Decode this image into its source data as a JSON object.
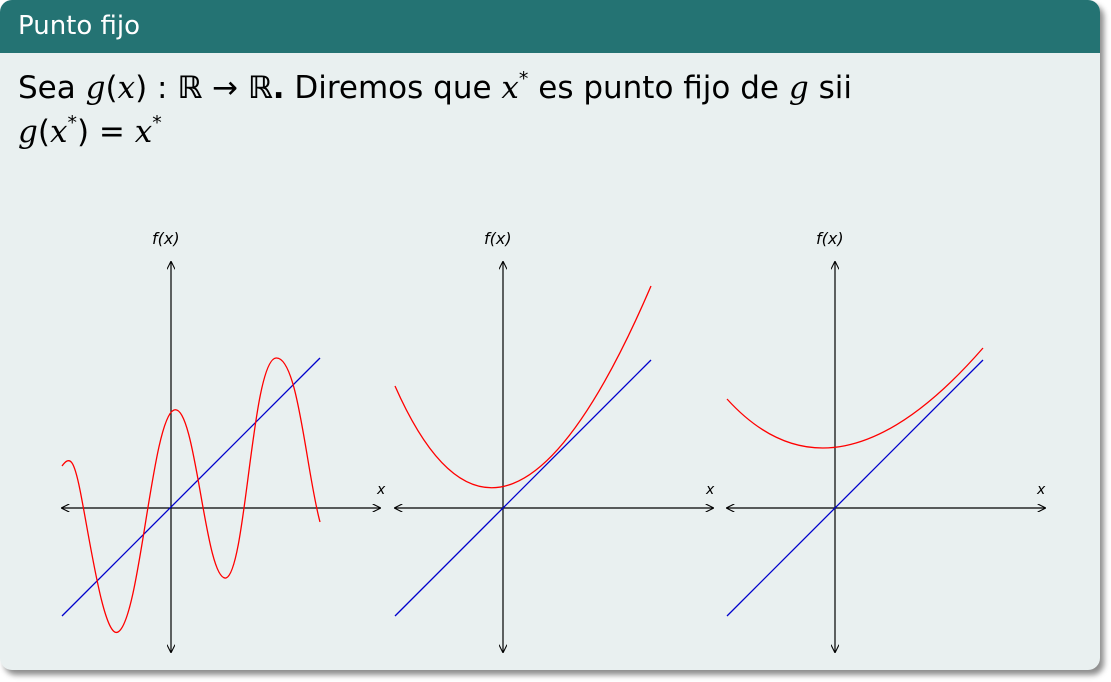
{
  "block": {
    "title": "Punto fijo",
    "statement": {
      "w1": "Sea",
      "g": "g",
      "x": "x",
      "colon": ":",
      "R": "ℝ",
      "arrow": "→",
      "R2": "ℝ.",
      "w2": "Diremos que",
      "xstar": "x",
      "star": "*",
      "w3": "es punto fijo de",
      "g2": "g",
      "w4": "sii",
      "g3": "g",
      "xstar2": "x",
      "star2": "*",
      "eq": "=",
      "xstar3": "x",
      "star3": "*"
    }
  },
  "plots": [
    {
      "name": "oscillating",
      "xlabel": "x",
      "ylabel": "f(x)"
    },
    {
      "name": "parabola-touching",
      "xlabel": "x",
      "ylabel": "f(x)"
    },
    {
      "name": "parabola-tangent",
      "xlabel": "x",
      "ylabel": "f(x)"
    }
  ],
  "colors": {
    "curve": "#ff0000",
    "identity": "#0000cc",
    "axis": "#000000",
    "header": "#247373",
    "background": "#e9f0f0"
  }
}
